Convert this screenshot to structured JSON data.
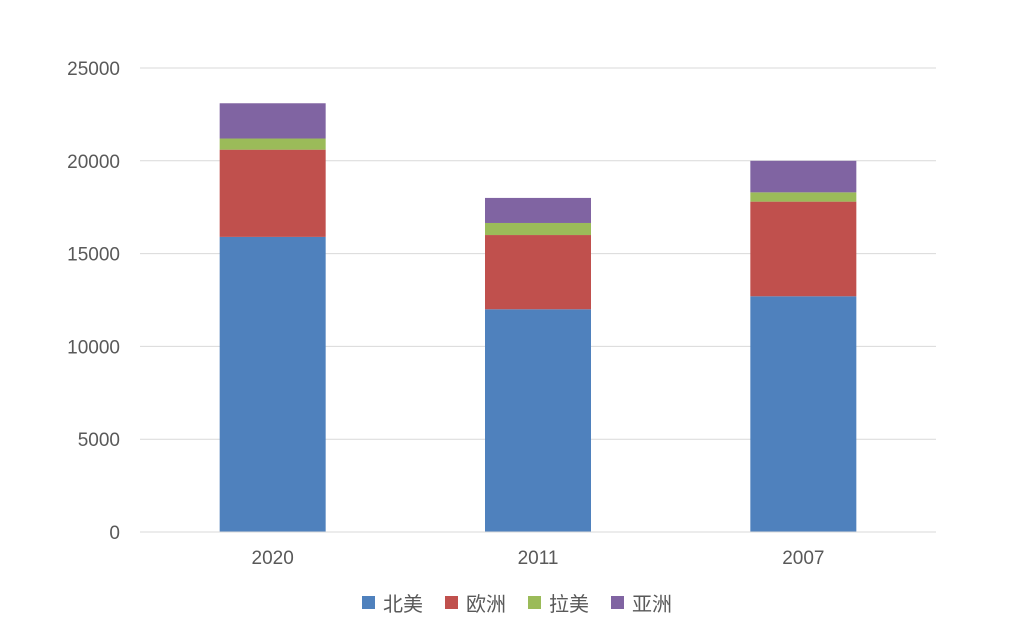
{
  "chart_data": {
    "type": "bar",
    "stacked": true,
    "categories": [
      "2020",
      "2011",
      "2007"
    ],
    "series": [
      {
        "name": "北美",
        "color": "#4f81bd",
        "values": [
          15900,
          12000,
          12700
        ]
      },
      {
        "name": "欧洲",
        "color": "#c0504d",
        "values": [
          4700,
          4000,
          5100
        ]
      },
      {
        "name": "拉美",
        "color": "#9bbb59",
        "values": [
          600,
          650,
          500
        ]
      },
      {
        "name": "亚洲",
        "color": "#8064a2",
        "values": [
          1900,
          1350,
          1700
        ]
      }
    ],
    "ylim": [
      0,
      25000
    ],
    "yticks": [
      "0",
      "5000",
      "10000",
      "15000",
      "20000",
      "25000"
    ],
    "grid": true,
    "legend_position": "bottom"
  }
}
